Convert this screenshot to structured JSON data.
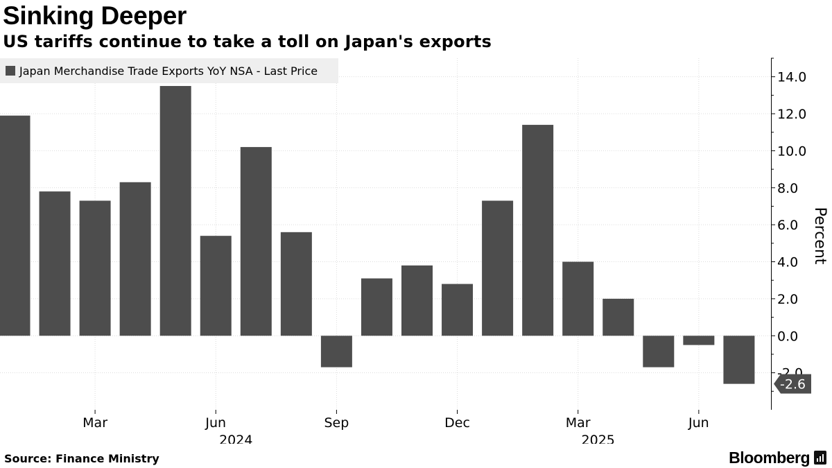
{
  "header": {
    "title": "Sinking Deeper",
    "subtitle": "US tariffs continue to take a toll on Japan's exports"
  },
  "footer": {
    "source": "Source: Finance Ministry",
    "brand": "Bloomberg"
  },
  "colors": {
    "bar": "#4d4d4d",
    "grid": "#dcdcdc",
    "legend_bg": "#efefef",
    "last_value_tag": "#4d4d4d"
  },
  "chart_data": {
    "type": "bar",
    "title": "Sinking Deeper",
    "subtitle": "US tariffs continue to take a toll on Japan's exports",
    "xlabel": "",
    "ylabel": "Percent",
    "ylim": [
      -4.0,
      15.0
    ],
    "yticks": [
      -2.0,
      0.0,
      2.0,
      4.0,
      6.0,
      8.0,
      10.0,
      12.0,
      14.0
    ],
    "ytick_labels": [
      "-2.0",
      "0.0",
      "2.0",
      "4.0",
      "6.0",
      "8.0",
      "10.0",
      "12.0",
      "14.0"
    ],
    "grid": true,
    "legend": {
      "position": "top-left",
      "entries": [
        "Japan Merchandise Trade Exports YoY NSA - Last Price"
      ]
    },
    "categories": [
      "Jan 2024",
      "Feb 2024",
      "Mar 2024",
      "Apr 2024",
      "May 2024",
      "Jun 2024",
      "Jul 2024",
      "Aug 2024",
      "Sep 2024",
      "Oct 2024",
      "Nov 2024",
      "Dec 2024",
      "Jan 2025",
      "Feb 2025",
      "Mar 2025",
      "Apr 2025",
      "May 2025",
      "Jun 2025",
      "Jul 2025"
    ],
    "series": [
      {
        "name": "Japan Merchandise Trade Exports YoY NSA - Last Price",
        "values": [
          11.9,
          7.8,
          7.3,
          8.3,
          13.5,
          5.4,
          10.2,
          5.6,
          -1.7,
          3.1,
          3.8,
          2.8,
          7.3,
          11.4,
          4.0,
          2.0,
          -1.7,
          -0.5,
          -2.6
        ]
      }
    ],
    "x_tick_labels": [
      {
        "category_index": 2,
        "label": "Mar"
      },
      {
        "category_index": 5,
        "label": "Jun"
      },
      {
        "category_index": 8,
        "label": "Sep"
      },
      {
        "category_index": 11,
        "label": "Dec"
      },
      {
        "category_index": 14,
        "label": "Mar"
      },
      {
        "category_index": 17,
        "label": "Jun"
      }
    ],
    "year_labels": [
      {
        "category_index": 5.5,
        "label": "2024"
      },
      {
        "category_index": 14.5,
        "label": "2025"
      }
    ],
    "last_value_label": "-2.6"
  }
}
